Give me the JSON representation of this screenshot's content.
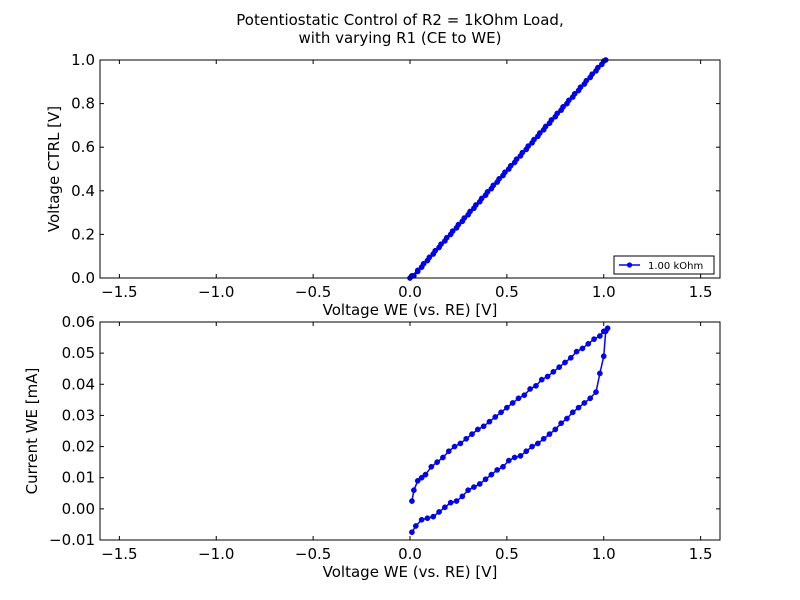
{
  "figure": {
    "title_line1": "Potentiostatic Control of R2 = 1kOhm Load,",
    "title_line2": "with varying R1 (CE to WE)"
  },
  "chart_data": [
    {
      "type": "line",
      "xlabel": "Voltage WE (vs. RE) [V]",
      "ylabel": "Voltage CTRL [V]",
      "xlim": [
        -1.6,
        1.6
      ],
      "ylim": [
        0.0,
        1.0
      ],
      "xticks": [
        -1.5,
        -1.0,
        -0.5,
        0.0,
        0.5,
        1.0,
        1.5
      ],
      "xtick_labels": [
        "−1.5",
        "−1.0",
        "−0.5",
        "0.0",
        "0.5",
        "1.0",
        "1.5"
      ],
      "yticks": [
        0.0,
        0.2,
        0.4,
        0.6,
        0.8,
        1.0
      ],
      "ytick_labels": [
        "0.0",
        "0.2",
        "0.4",
        "0.6",
        "0.8",
        "1.0"
      ],
      "grid": false,
      "legend": {
        "placement": "lower-right",
        "entries": [
          "1.00 kOhm"
        ]
      },
      "color": "#0000ff",
      "series": [
        {
          "name": "1.00 kOhm",
          "x": [
            0.0,
            0.02,
            0.04,
            0.06,
            0.09,
            0.12,
            0.15,
            0.18,
            0.21,
            0.24,
            0.27,
            0.3,
            0.33,
            0.36,
            0.39,
            0.42,
            0.45,
            0.48,
            0.51,
            0.54,
            0.57,
            0.6,
            0.63,
            0.66,
            0.69,
            0.72,
            0.75,
            0.78,
            0.81,
            0.84,
            0.87,
            0.9,
            0.93,
            0.96,
            0.99,
            1.01,
            1.0,
            0.97,
            0.94,
            0.91,
            0.88,
            0.85,
            0.82,
            0.79,
            0.76,
            0.73,
            0.7,
            0.67,
            0.64,
            0.61,
            0.58,
            0.55,
            0.52,
            0.49,
            0.46,
            0.43,
            0.4,
            0.37,
            0.34,
            0.31,
            0.28,
            0.25,
            0.22,
            0.19,
            0.16,
            0.13,
            0.1,
            0.07,
            0.04,
            0.01
          ],
          "y": [
            0.0,
            0.01,
            0.03,
            0.05,
            0.08,
            0.11,
            0.14,
            0.17,
            0.2,
            0.23,
            0.26,
            0.29,
            0.32,
            0.35,
            0.38,
            0.41,
            0.44,
            0.47,
            0.5,
            0.53,
            0.56,
            0.59,
            0.62,
            0.65,
            0.68,
            0.71,
            0.74,
            0.77,
            0.8,
            0.83,
            0.86,
            0.89,
            0.92,
            0.95,
            0.98,
            1.0,
            0.995,
            0.965,
            0.935,
            0.905,
            0.875,
            0.845,
            0.815,
            0.785,
            0.755,
            0.725,
            0.695,
            0.665,
            0.635,
            0.605,
            0.575,
            0.545,
            0.515,
            0.485,
            0.455,
            0.425,
            0.395,
            0.365,
            0.335,
            0.305,
            0.275,
            0.245,
            0.215,
            0.185,
            0.155,
            0.125,
            0.095,
            0.065,
            0.035,
            0.01
          ]
        }
      ]
    },
    {
      "type": "line",
      "xlabel": "Voltage WE (vs. RE) [V]",
      "ylabel": "Current WE [mA]",
      "xlim": [
        -1.6,
        1.6
      ],
      "ylim": [
        -0.01,
        0.06
      ],
      "xticks": [
        -1.5,
        -1.0,
        -0.5,
        0.0,
        0.5,
        1.0,
        1.5
      ],
      "xtick_labels": [
        "−1.5",
        "−1.0",
        "−0.5",
        "0.0",
        "0.5",
        "1.0",
        "1.5"
      ],
      "yticks": [
        -0.01,
        0.0,
        0.01,
        0.02,
        0.03,
        0.04,
        0.05,
        0.06
      ],
      "ytick_labels": [
        "−0.01",
        "0.00",
        "0.01",
        "0.02",
        "0.03",
        "0.04",
        "0.05",
        "0.06"
      ],
      "grid": false,
      "color": "#0000ff",
      "series": [
        {
          "name": "1.00 kOhm",
          "x": [
            0.01,
            0.03,
            0.06,
            0.09,
            0.12,
            0.15,
            0.18,
            0.21,
            0.24,
            0.27,
            0.3,
            0.33,
            0.36,
            0.39,
            0.42,
            0.45,
            0.48,
            0.51,
            0.54,
            0.57,
            0.6,
            0.63,
            0.66,
            0.69,
            0.72,
            0.75,
            0.78,
            0.81,
            0.84,
            0.87,
            0.9,
            0.93,
            0.96,
            0.98,
            1.0,
            1.01,
            1.02,
            1.0,
            0.98,
            0.95,
            0.92,
            0.89,
            0.86,
            0.83,
            0.8,
            0.77,
            0.74,
            0.71,
            0.68,
            0.65,
            0.62,
            0.59,
            0.56,
            0.53,
            0.5,
            0.47,
            0.44,
            0.41,
            0.38,
            0.35,
            0.32,
            0.29,
            0.26,
            0.23,
            0.2,
            0.17,
            0.14,
            0.11,
            0.08,
            0.06,
            0.04,
            0.02,
            0.01
          ],
          "y": [
            -0.0075,
            -0.0055,
            -0.0035,
            -0.003,
            -0.0025,
            -0.001,
            0.0005,
            0.002,
            0.0025,
            0.004,
            0.006,
            0.007,
            0.008,
            0.0095,
            0.011,
            0.0125,
            0.0135,
            0.0155,
            0.0165,
            0.017,
            0.0185,
            0.02,
            0.021,
            0.0225,
            0.024,
            0.0255,
            0.0275,
            0.029,
            0.031,
            0.0325,
            0.034,
            0.0355,
            0.0375,
            0.0435,
            0.049,
            0.057,
            0.058,
            0.057,
            0.0555,
            0.0545,
            0.053,
            0.0515,
            0.0505,
            0.0485,
            0.047,
            0.0455,
            0.044,
            0.0425,
            0.0415,
            0.0395,
            0.0385,
            0.0365,
            0.0355,
            0.034,
            0.0325,
            0.031,
            0.0295,
            0.028,
            0.0265,
            0.0255,
            0.024,
            0.0225,
            0.021,
            0.02,
            0.0185,
            0.0165,
            0.015,
            0.0135,
            0.011,
            0.01,
            0.009,
            0.006,
            0.0025
          ]
        }
      ]
    }
  ]
}
